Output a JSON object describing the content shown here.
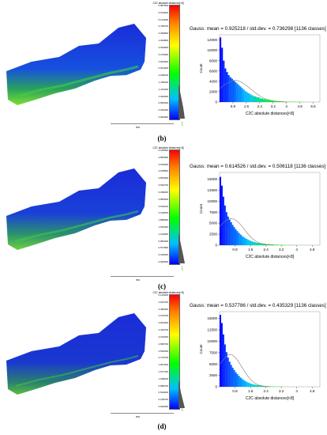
{
  "panels": [
    {
      "caption": "(b)",
      "colorbar_title": "C2C absolute distances[<8]",
      "colorbar_ticks": [
        "5.887500",
        "5.514600",
        "5.141600",
        "4.768700",
        "4.395800",
        "4.022800",
        "3.649900",
        "3.276900",
        "2.904000",
        "2.531000",
        "2.158100",
        "1.785200",
        "1.412200",
        "1.039300",
        "0.666300",
        "0.293400",
        "0.000000"
      ],
      "scale_label": "500",
      "gauss_title": "Gauss: mean = 0.925218 / std.dev. = 0.736298 [1136 classes]",
      "chart_data": {
        "type": "bar",
        "xlabel": "C2C absolute distances[<8]",
        "ylabel": "Count",
        "xticks": [
          "0.8",
          "1.6",
          "2.4",
          "3.2",
          "4",
          "4.8",
          "5.6"
        ],
        "yticks": [
          "0",
          "2000",
          "4000",
          "6000",
          "8000",
          "10000",
          "12000"
        ],
        "xlim": [
          0,
          6
        ],
        "ylim": [
          0,
          13000
        ],
        "hist": {
          "x": [
            0.05,
            0.15,
            0.25,
            0.35,
            0.45,
            0.55,
            0.65,
            0.75,
            0.85,
            0.95,
            1.05,
            1.15,
            1.25,
            1.35,
            1.45,
            1.55,
            1.65,
            1.75,
            1.85,
            1.95,
            2.1,
            2.3,
            2.5,
            2.7,
            2.9,
            3.1,
            3.3,
            3.5,
            3.7,
            3.9,
            4.2,
            4.6,
            5.0,
            5.4
          ],
          "y": [
            12500,
            10500,
            8000,
            6500,
            5800,
            5200,
            4800,
            4500,
            4200,
            3900,
            3600,
            3300,
            3000,
            2700,
            2400,
            2100,
            1900,
            1700,
            1500,
            1300,
            1100,
            900,
            700,
            550,
            420,
            320,
            240,
            180,
            130,
            90,
            60,
            40,
            20,
            10
          ]
        },
        "gauss_curve": {
          "x": [
            0,
            0.2,
            0.4,
            0.6,
            0.8,
            0.93,
            1.1,
            1.3,
            1.5,
            1.7,
            1.9,
            2.1,
            2.3,
            2.5,
            2.7,
            3.0,
            3.4,
            4.0
          ],
          "y": [
            2600,
            3100,
            3550,
            3900,
            4150,
            4200,
            4100,
            3850,
            3450,
            2950,
            2420,
            1900,
            1420,
            1000,
            670,
            330,
            100,
            5
          ]
        }
      }
    },
    {
      "caption": "(c)",
      "colorbar_title": "C2C absolute distances[<8]",
      "colorbar_ticks": [
        "5.183500",
        "4.850900",
        "4.518400",
        "4.185800",
        "3.853300",
        "3.520700",
        "3.188200",
        "2.855600",
        "2.523100",
        "2.190500",
        "1.858000",
        "1.525400",
        "1.192900",
        "0.860300",
        "0.527800",
        "0.195200",
        "0.000000"
      ],
      "scale_label": "500",
      "gauss_title": "Gauss: mean = 0.614526 / std.dev. = 0.506118 [1136 classes]",
      "chart_data": {
        "type": "bar",
        "xlabel": "C2C absolute distances[<8]",
        "ylabel": "Count",
        "xticks": [
          "0.8",
          "1.6",
          "2.4",
          "3.2",
          "4",
          "4.8"
        ],
        "yticks": [
          "0",
          "2500",
          "5000",
          "7500",
          "10000",
          "12500",
          "15000"
        ],
        "xlim": [
          0,
          5.2
        ],
        "ylim": [
          0,
          16500
        ],
        "hist": {
          "x": [
            0.04,
            0.12,
            0.2,
            0.28,
            0.36,
            0.44,
            0.52,
            0.6,
            0.68,
            0.76,
            0.84,
            0.92,
            1.0,
            1.1,
            1.2,
            1.3,
            1.4,
            1.5,
            1.6,
            1.7,
            1.8,
            1.95,
            2.1,
            2.3,
            2.5,
            2.7,
            2.9,
            3.2,
            3.6,
            4.0
          ],
          "y": [
            15500,
            13500,
            11000,
            9000,
            7500,
            6500,
            5800,
            5200,
            4600,
            4100,
            3600,
            3200,
            2800,
            2400,
            2000,
            1700,
            1450,
            1200,
            1000,
            850,
            700,
            550,
            430,
            320,
            240,
            170,
            120,
            80,
            40,
            15
          ]
        },
        "gauss_curve": {
          "x": [
            0,
            0.15,
            0.3,
            0.45,
            0.6,
            0.75,
            0.9,
            1.05,
            1.2,
            1.35,
            1.5,
            1.7,
            1.9,
            2.1,
            2.4,
            2.8
          ],
          "y": [
            4200,
            4900,
            5500,
            5900,
            6050,
            5900,
            5500,
            4850,
            4050,
            3200,
            2400,
            1500,
            850,
            430,
            140,
            15
          ]
        }
      }
    },
    {
      "caption": "(d)",
      "colorbar_title": "C2C absolute distances[<8]",
      "colorbar_ticks": [
        "5.142200",
        "4.812700",
        "4.483200",
        "4.153700",
        "3.824200",
        "3.494700",
        "3.165200",
        "2.835700",
        "2.506200",
        "2.176700",
        "1.847200",
        "1.517700",
        "1.188200",
        "0.858700",
        "0.529200",
        "0.199700",
        "0.000000"
      ],
      "scale_label": "500",
      "gauss_title": "Gauss: mean = 0.537786 / std.dev. = 0.435329 [1136 classes]",
      "chart_data": {
        "type": "bar",
        "xlabel": "C2C absolute distances[<8]",
        "ylabel": "Count",
        "xticks": [
          "0.8",
          "1.6",
          "2.4",
          "3.2",
          "4",
          "4.8"
        ],
        "yticks": [
          "0",
          "2500",
          "5000",
          "7500",
          "10000",
          "12500",
          "15000"
        ],
        "xlim": [
          0,
          5.2
        ],
        "ylim": [
          0,
          16500
        ],
        "hist": {
          "x": [
            0.04,
            0.12,
            0.2,
            0.28,
            0.36,
            0.44,
            0.52,
            0.6,
            0.68,
            0.76,
            0.84,
            0.92,
            1.0,
            1.1,
            1.2,
            1.3,
            1.4,
            1.5,
            1.6,
            1.7,
            1.8,
            1.95,
            2.1,
            2.3,
            2.5,
            2.7,
            3.0,
            3.4
          ],
          "y": [
            15800,
            14000,
            11500,
            9300,
            7600,
            6400,
            5500,
            4800,
            4200,
            3700,
            3200,
            2800,
            2400,
            2000,
            1650,
            1350,
            1100,
            900,
            730,
            590,
            470,
            360,
            270,
            190,
            130,
            85,
            45,
            15
          ]
        },
        "gauss_curve": {
          "x": [
            0,
            0.15,
            0.3,
            0.45,
            0.54,
            0.65,
            0.8,
            0.95,
            1.1,
            1.25,
            1.4,
            1.6,
            1.8,
            2.0,
            2.3,
            2.6
          ],
          "y": [
            4800,
            5700,
            6500,
            7000,
            7100,
            7000,
            6500,
            5700,
            4700,
            3700,
            2700,
            1600,
            850,
            400,
            120,
            15
          ]
        }
      }
    }
  ],
  "colors": {
    "hist_start": "#0000ff",
    "hist_mid": "#00c0ff",
    "hist_end": "#00ff00",
    "curve": "#808080"
  }
}
